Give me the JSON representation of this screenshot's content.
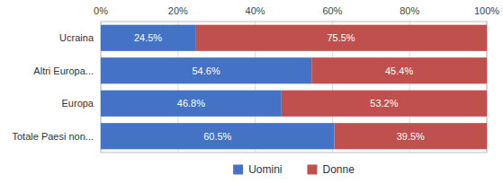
{
  "chart_data": {
    "type": "bar",
    "orientation": "horizontal",
    "stacked": true,
    "categories": [
      "Ucraina",
      "Altri Europa...",
      "Europa",
      "Totale Paesi non..."
    ],
    "series": [
      {
        "name": "Uomini",
        "color": "#4472C4",
        "values": [
          24.5,
          54.6,
          46.8,
          60.5
        ],
        "value_labels": [
          "24.5%",
          "54.6%",
          "46.8%",
          "60.5%"
        ]
      },
      {
        "name": "Donne",
        "color": "#C0504D",
        "values": [
          75.5,
          45.4,
          53.2,
          39.5
        ],
        "value_labels": [
          "75.5%",
          "45.4%",
          "53.2%",
          "39.5%"
        ]
      }
    ],
    "xlim": [
      0,
      100
    ],
    "xticks": [
      {
        "value": 0,
        "label": "0%"
      },
      {
        "value": 20,
        "label": "20%"
      },
      {
        "value": 40,
        "label": "40%"
      },
      {
        "value": 60,
        "label": "60%"
      },
      {
        "value": 80,
        "label": "80%"
      },
      {
        "value": 100,
        "label": "100%"
      }
    ],
    "grid": true,
    "legend": "bottom",
    "data_labels": true
  }
}
